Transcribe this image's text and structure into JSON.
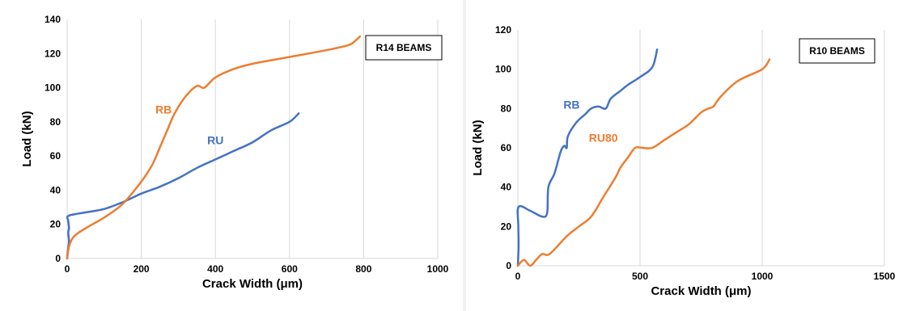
{
  "chart_data": [
    {
      "type": "line",
      "title": "R14 BEAMS",
      "xlabel": "Crack Width (μm)",
      "ylabel": "Load (kN)",
      "xlim": [
        0,
        1000
      ],
      "ylim": [
        0,
        140
      ],
      "xticks": [
        0,
        200,
        400,
        600,
        800,
        1000
      ],
      "yticks": [
        0,
        20,
        40,
        60,
        80,
        100,
        120,
        140
      ],
      "grid": "vertical",
      "legend_placement": "top-right box",
      "series": [
        {
          "name": "RU",
          "color": "#4472C4",
          "label_at": [
            400,
            67
          ],
          "points": [
            [
              0,
              0
            ],
            [
              2,
              5
            ],
            [
              5,
              10
            ],
            [
              3,
              15
            ],
            [
              5,
              18
            ],
            [
              3,
              22
            ],
            [
              4,
              25
            ],
            [
              50,
              27
            ],
            [
              100,
              29
            ],
            [
              150,
              33
            ],
            [
              200,
              38
            ],
            [
              250,
              42
            ],
            [
              300,
              47
            ],
            [
              350,
              53
            ],
            [
              400,
              58
            ],
            [
              450,
              63
            ],
            [
              500,
              68
            ],
            [
              550,
              75
            ],
            [
              600,
              80
            ],
            [
              625,
              85
            ]
          ]
        },
        {
          "name": "RB",
          "color": "#ED7D31",
          "label_at": [
            260,
            85
          ],
          "points": [
            [
              0,
              0
            ],
            [
              5,
              7
            ],
            [
              15,
              12
            ],
            [
              30,
              15
            ],
            [
              60,
              19
            ],
            [
              100,
              24
            ],
            [
              150,
              32
            ],
            [
              200,
              45
            ],
            [
              230,
              55
            ],
            [
              250,
              65
            ],
            [
              270,
              75
            ],
            [
              290,
              85
            ],
            [
              320,
              95
            ],
            [
              350,
              101
            ],
            [
              370,
              100
            ],
            [
              400,
              106
            ],
            [
              450,
              111
            ],
            [
              500,
              114
            ],
            [
              600,
              118
            ],
            [
              700,
              122
            ],
            [
              760,
              125
            ],
            [
              780,
              128
            ],
            [
              790,
              130
            ]
          ]
        }
      ]
    },
    {
      "type": "line",
      "title": "R10 BEAMS",
      "xlabel": "Crack Width (μm)",
      "ylabel": "Load (kN)",
      "xlim": [
        0,
        1500
      ],
      "ylim": [
        0,
        120
      ],
      "xticks": [
        0,
        500,
        1000,
        1500
      ],
      "yticks": [
        0,
        20,
        40,
        60,
        80,
        100,
        120
      ],
      "grid": "vertical",
      "legend_placement": "top-right box",
      "series": [
        {
          "name": "RB",
          "color": "#4472C4",
          "label_at": [
            220,
            80
          ],
          "points": [
            [
              0,
              0
            ],
            [
              3,
              10
            ],
            [
              2,
              20
            ],
            [
              3,
              30
            ],
            [
              50,
              28
            ],
            [
              100,
              25
            ],
            [
              120,
              27
            ],
            [
              125,
              40
            ],
            [
              150,
              47
            ],
            [
              175,
              58
            ],
            [
              190,
              61
            ],
            [
              200,
              60
            ],
            [
              205,
              66
            ],
            [
              240,
              73
            ],
            [
              275,
              77
            ],
            [
              300,
              80
            ],
            [
              330,
              81
            ],
            [
              360,
              80
            ],
            [
              380,
              85
            ],
            [
              420,
              89
            ],
            [
              450,
              92
            ],
            [
              500,
              96
            ],
            [
              550,
              101
            ],
            [
              570,
              110
            ]
          ]
        },
        {
          "name": "RU80",
          "color": "#ED7D31",
          "label_at": [
            350,
            63
          ],
          "points": [
            [
              0,
              0
            ],
            [
              25,
              3
            ],
            [
              50,
              0
            ],
            [
              75,
              3
            ],
            [
              100,
              6
            ],
            [
              130,
              6
            ],
            [
              200,
              15
            ],
            [
              250,
              20
            ],
            [
              300,
              25
            ],
            [
              350,
              35
            ],
            [
              400,
              45
            ],
            [
              420,
              50
            ],
            [
              450,
              55
            ],
            [
              480,
              60
            ],
            [
              510,
              60
            ],
            [
              550,
              60
            ],
            [
              600,
              64
            ],
            [
              650,
              68
            ],
            [
              700,
              72
            ],
            [
              750,
              78
            ],
            [
              780,
              80
            ],
            [
              800,
              81
            ],
            [
              830,
              86
            ],
            [
              900,
              94
            ],
            [
              1000,
              100
            ],
            [
              1030,
              105
            ]
          ]
        }
      ]
    }
  ]
}
